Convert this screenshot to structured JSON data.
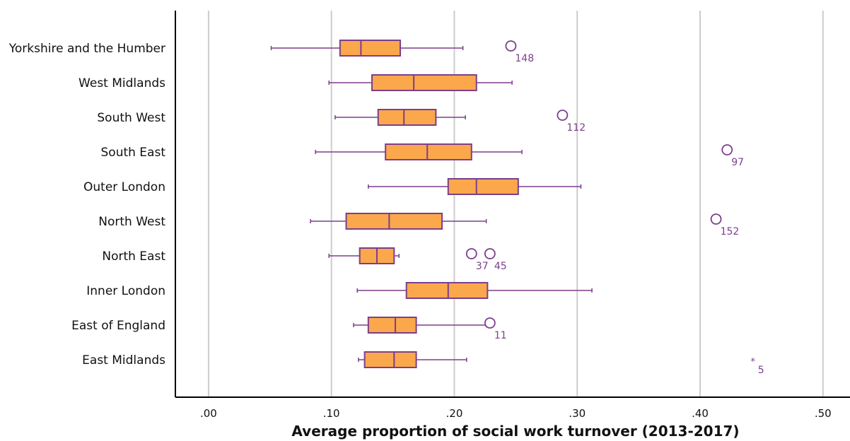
{
  "chart_data": {
    "type": "boxplot",
    "orientation": "horizontal",
    "title": "",
    "xlabel": "Average proportion of social work turnover (2013-2017)",
    "ylabel": "",
    "xlim": [
      -0.027,
      0.522
    ],
    "xticks": [
      0.0,
      0.1,
      0.2,
      0.3,
      0.4,
      0.5
    ],
    "xtick_labels": [
      ".00",
      ".10",
      ".20",
      ".30",
      ".40",
      ".50"
    ],
    "grid": "vertical",
    "colors": {
      "box_fill": "#FBA74C",
      "box_stroke": "#7B3F8C",
      "grid": "#cccccc",
      "axis": "#000000",
      "outlier_text": "#7B3F8C"
    },
    "categories": [
      {
        "name": "Yorkshire and the Humber",
        "whisker_low": 0.051,
        "q1": 0.107,
        "median": 0.124,
        "q3": 0.156,
        "whisker_high": 0.207,
        "outliers": [
          {
            "value": 0.246,
            "label": "148",
            "marker": "circle"
          }
        ]
      },
      {
        "name": "West Midlands",
        "whisker_low": 0.098,
        "q1": 0.133,
        "median": 0.167,
        "q3": 0.218,
        "whisker_high": 0.247,
        "outliers": []
      },
      {
        "name": "South West",
        "whisker_low": 0.103,
        "q1": 0.138,
        "median": 0.159,
        "q3": 0.185,
        "whisker_high": 0.209,
        "outliers": [
          {
            "value": 0.288,
            "label": "112",
            "marker": "circle"
          }
        ]
      },
      {
        "name": "South East",
        "whisker_low": 0.087,
        "q1": 0.144,
        "median": 0.178,
        "q3": 0.214,
        "whisker_high": 0.255,
        "outliers": [
          {
            "value": 0.422,
            "label": "97",
            "marker": "circle"
          }
        ]
      },
      {
        "name": "Outer London",
        "whisker_low": 0.13,
        "q1": 0.195,
        "median": 0.218,
        "q3": 0.252,
        "whisker_high": 0.303,
        "outliers": []
      },
      {
        "name": "North West",
        "whisker_low": 0.083,
        "q1": 0.112,
        "median": 0.147,
        "q3": 0.19,
        "whisker_high": 0.226,
        "outliers": [
          {
            "value": 0.413,
            "label": "152",
            "marker": "circle"
          }
        ]
      },
      {
        "name": "North East",
        "whisker_low": 0.098,
        "q1": 0.123,
        "median": 0.137,
        "q3": 0.151,
        "whisker_high": 0.155,
        "outliers": [
          {
            "value": 0.214,
            "label": "37",
            "marker": "circle"
          },
          {
            "value": 0.229,
            "label": "45",
            "marker": "circle"
          }
        ]
      },
      {
        "name": "Inner London",
        "whisker_low": 0.121,
        "q1": 0.161,
        "median": 0.195,
        "q3": 0.227,
        "whisker_high": 0.312,
        "outliers": []
      },
      {
        "name": "East of England",
        "whisker_low": 0.118,
        "q1": 0.13,
        "median": 0.152,
        "q3": 0.169,
        "whisker_high": 0.226,
        "outliers": [
          {
            "value": 0.229,
            "label": "11",
            "marker": "circle"
          }
        ]
      },
      {
        "name": "East Midlands",
        "whisker_low": 0.122,
        "q1": 0.127,
        "median": 0.151,
        "q3": 0.169,
        "whisker_high": 0.21,
        "outliers": [
          {
            "value": 0.443,
            "label": "5",
            "marker": "star"
          }
        ]
      }
    ]
  }
}
